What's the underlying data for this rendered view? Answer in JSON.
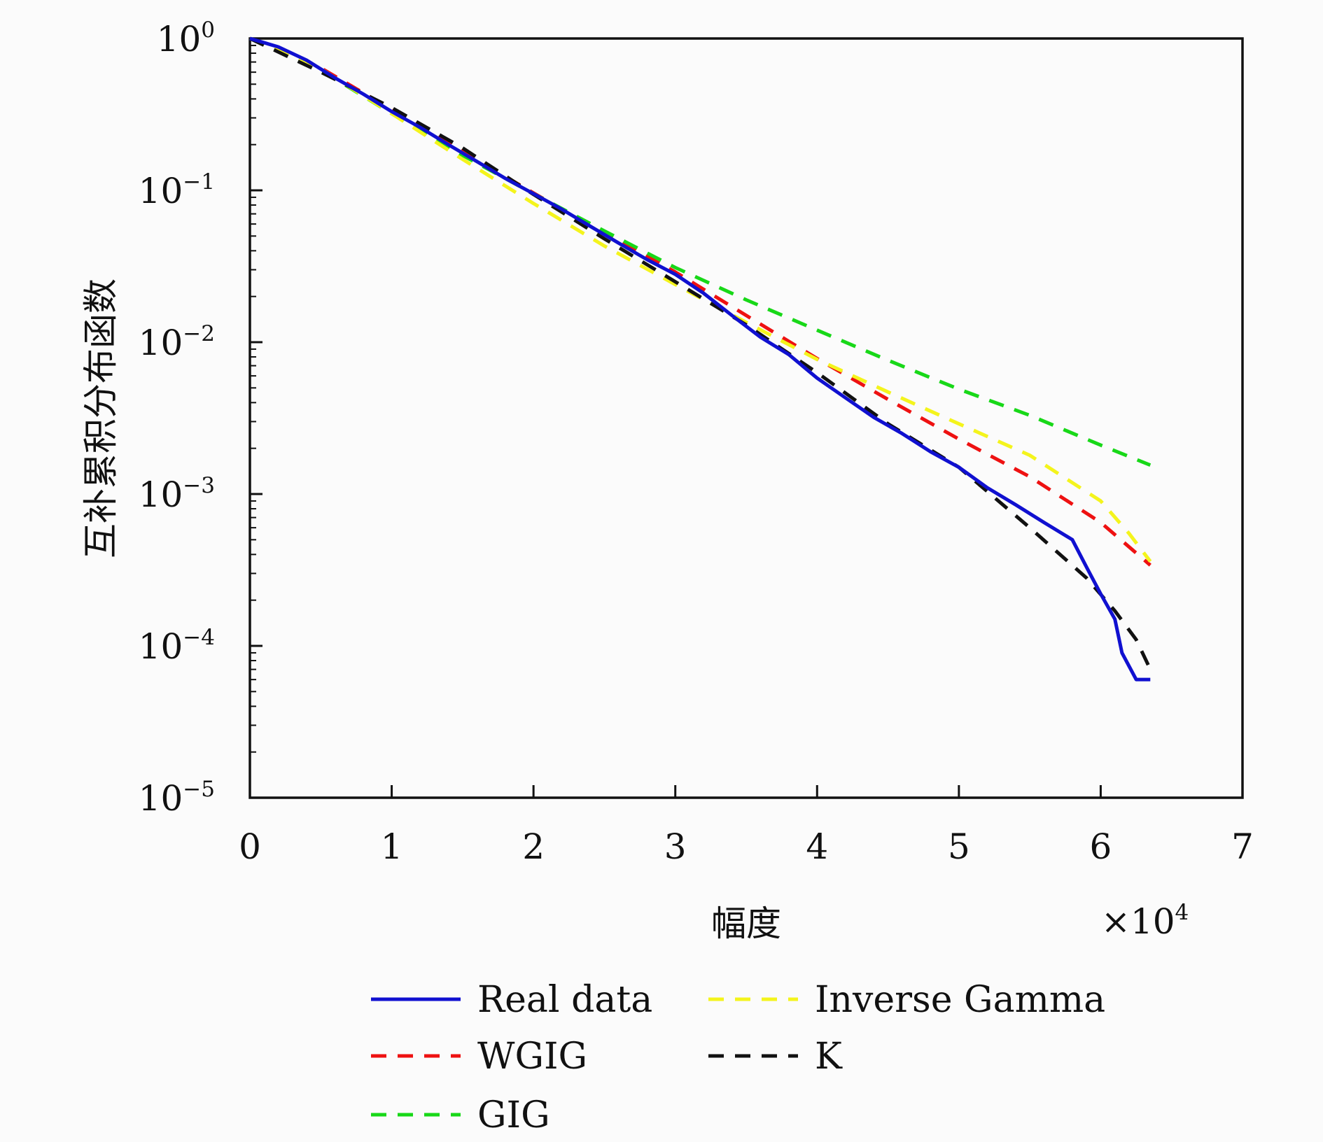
{
  "chart_data": {
    "type": "line",
    "xlabel": "幅度",
    "ylabel": "互补累积分布函数",
    "x_multiplier": "×10",
    "x_multiplier_exp": "4",
    "xlim": [
      0,
      7
    ],
    "ylim": [
      1e-05,
      1
    ],
    "yscale": "log",
    "x_ticks": [
      "0",
      "1",
      "2",
      "3",
      "4",
      "5",
      "6",
      "7"
    ],
    "y_ticks": [
      {
        "base": "10",
        "exp": "0",
        "value": 1
      },
      {
        "base": "10",
        "exp": "−1",
        "value": 0.1
      },
      {
        "base": "10",
        "exp": "−2",
        "value": 0.01
      },
      {
        "base": "10",
        "exp": "−3",
        "value": 0.001
      },
      {
        "base": "10",
        "exp": "−4",
        "value": 0.0001
      },
      {
        "base": "10",
        "exp": "−5",
        "value": 1e-05
      }
    ],
    "grid": false,
    "legend_position": "bottom",
    "series": [
      {
        "name": "Real data",
        "color": "#1010d0",
        "dash": "solid",
        "x": [
          0,
          0.2,
          0.4,
          0.6,
          0.8,
          1.0,
          1.2,
          1.4,
          1.6,
          1.8,
          2.0,
          2.2,
          2.4,
          2.6,
          2.8,
          3.0,
          3.2,
          3.4,
          3.6,
          3.8,
          4.0,
          4.2,
          4.4,
          4.6,
          4.8,
          5.0,
          5.2,
          5.4,
          5.6,
          5.8,
          5.9,
          6.0,
          6.1,
          6.15,
          6.25,
          6.35
        ],
        "y": [
          1,
          0.88,
          0.72,
          0.55,
          0.43,
          0.33,
          0.26,
          0.2,
          0.155,
          0.12,
          0.095,
          0.075,
          0.058,
          0.045,
          0.035,
          0.028,
          0.021,
          0.015,
          0.0108,
          0.0083,
          0.0058,
          0.0043,
          0.0032,
          0.0025,
          0.0019,
          0.0015,
          0.0011,
          0.00085,
          0.00065,
          0.0005,
          0.00033,
          0.00022,
          0.00015,
          9e-05,
          6e-05,
          6e-05
        ]
      },
      {
        "name": "WGIG",
        "color": "#ee1111",
        "dash": "dashed",
        "x": [
          0,
          0.5,
          1.0,
          1.5,
          2.0,
          2.5,
          3.0,
          3.5,
          4.0,
          4.5,
          5.0,
          5.5,
          6.0,
          6.35
        ],
        "y": [
          1,
          0.64,
          0.34,
          0.18,
          0.096,
          0.052,
          0.029,
          0.015,
          0.0078,
          0.0042,
          0.0023,
          0.0013,
          0.00065,
          0.00034
        ]
      },
      {
        "name": "GIG",
        "color": "#18d818",
        "dash": "dashed",
        "x": [
          0,
          0.5,
          1.0,
          1.5,
          2.0,
          2.5,
          3.0,
          3.5,
          4.0,
          4.5,
          5.0,
          5.5,
          6.0,
          6.35
        ],
        "y": [
          1,
          0.62,
          0.32,
          0.17,
          0.095,
          0.054,
          0.031,
          0.019,
          0.012,
          0.0076,
          0.0049,
          0.0033,
          0.0021,
          0.00155
        ]
      },
      {
        "name": "Inverse Gamma",
        "color": "#f4f41c",
        "dash": "dashed",
        "x": [
          0,
          0.5,
          1.0,
          1.5,
          2.0,
          2.5,
          3.0,
          3.5,
          4.0,
          4.5,
          5.0,
          5.5,
          6.0,
          6.2,
          6.35
        ],
        "y": [
          1,
          0.63,
          0.32,
          0.16,
          0.082,
          0.043,
          0.024,
          0.0135,
          0.0077,
          0.0047,
          0.0029,
          0.0018,
          0.0009,
          0.00055,
          0.00036
        ]
      },
      {
        "name": "K",
        "color": "#111111",
        "dash": "dashed",
        "x": [
          0,
          0.5,
          1.0,
          1.5,
          2.0,
          2.5,
          3.0,
          3.5,
          4.0,
          4.5,
          5.0,
          5.5,
          5.9,
          6.1,
          6.25,
          6.35
        ],
        "y": [
          1,
          0.6,
          0.35,
          0.19,
          0.094,
          0.048,
          0.025,
          0.013,
          0.0063,
          0.0029,
          0.0015,
          0.0006,
          0.00028,
          0.00017,
          0.00011,
          7e-05
        ]
      }
    ]
  }
}
